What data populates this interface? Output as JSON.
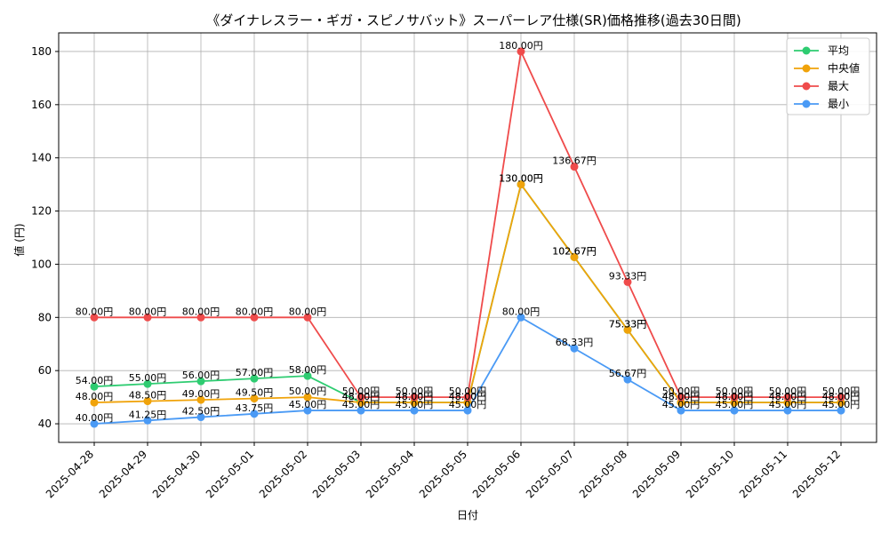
{
  "chart_data": {
    "type": "line",
    "title": "《ダイナレスラー・ギガ・スピノサバット》スーパーレア仕様(SR)価格推移(過去30日間)",
    "xlabel": "日付",
    "ylabel": "値 (円)",
    "ylim": [
      33,
      187
    ],
    "yticks": [
      40,
      60,
      80,
      100,
      120,
      140,
      160,
      180
    ],
    "grid": true,
    "legend_position": "top-right",
    "label_suffix": "円",
    "categories": [
      "2025-04-28",
      "2025-04-29",
      "2025-04-30",
      "2025-05-01",
      "2025-05-02",
      "2025-05-03",
      "2025-05-04",
      "2025-05-05",
      "2025-05-06",
      "2025-05-07",
      "2025-05-08",
      "2025-05-09",
      "2025-05-10",
      "2025-05-11",
      "2025-05-12"
    ],
    "series": [
      {
        "name": "平均",
        "color": "#2ecc71",
        "values": [
          54.0,
          55.0,
          56.0,
          57.0,
          58.0,
          48.0,
          48.0,
          48.0,
          130.0,
          102.67,
          75.33,
          48.0,
          48.0,
          48.0,
          48.0
        ]
      },
      {
        "name": "中央値",
        "color": "#f0a30a",
        "values": [
          48.0,
          48.5,
          49.0,
          49.5,
          50.0,
          48.0,
          48.0,
          48.0,
          130.0,
          102.67,
          75.33,
          48.0,
          48.0,
          48.0,
          48.0
        ]
      },
      {
        "name": "最大",
        "color": "#ef4b4b",
        "values": [
          80.0,
          80.0,
          80.0,
          80.0,
          80.0,
          50.0,
          50.0,
          50.0,
          180.0,
          136.67,
          93.33,
          50.0,
          50.0,
          50.0,
          50.0
        ]
      },
      {
        "name": "最小",
        "color": "#4a9af5",
        "values": [
          40.0,
          41.25,
          42.5,
          43.75,
          45.0,
          45.0,
          45.0,
          45.0,
          80.0,
          68.33,
          56.67,
          45.0,
          45.0,
          45.0,
          45.0
        ]
      }
    ]
  }
}
